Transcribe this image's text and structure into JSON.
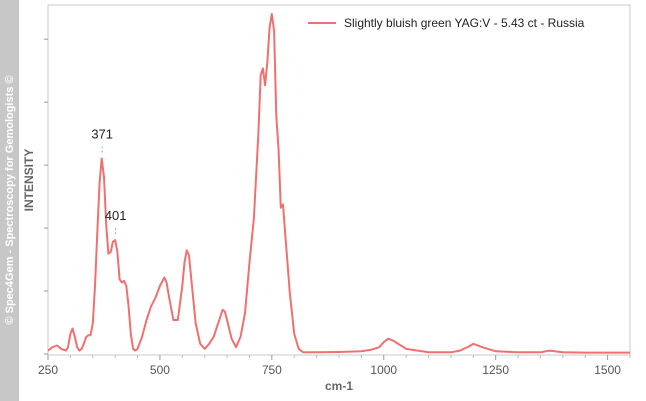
{
  "watermark": "© Spec4Gem - Spectroscopy for Gemologists ©",
  "chart_data": {
    "type": "line",
    "xlabel": "cm-1",
    "ylabel": "INTENSITY",
    "xlim": [
      250,
      1550
    ],
    "ylim": [
      0,
      1
    ],
    "x_ticks": [
      "250",
      "500",
      "750",
      "1000",
      "1250",
      "1500"
    ],
    "y_ticks_labeled": false,
    "grid": false,
    "legend_position": "top-right",
    "series": [
      {
        "name": "Slightly bluish green YAG:V - 5.43 ct - Russia",
        "color": "#f07070",
        "x": [
          250,
          260,
          270,
          280,
          290,
          295,
          300,
          305,
          310,
          315,
          320,
          325,
          330,
          335,
          340,
          345,
          350,
          355,
          360,
          365,
          370,
          375,
          380,
          385,
          390,
          395,
          400,
          405,
          410,
          415,
          420,
          425,
          430,
          435,
          440,
          445,
          450,
          460,
          470,
          480,
          490,
          500,
          510,
          515,
          520,
          530,
          540,
          550,
          555,
          560,
          565,
          570,
          580,
          590,
          600,
          610,
          620,
          630,
          640,
          645,
          650,
          660,
          670,
          680,
          690,
          700,
          710,
          720,
          725,
          730,
          735,
          740,
          745,
          750,
          755,
          760,
          765,
          770,
          775,
          780,
          790,
          800,
          810,
          820,
          850,
          900,
          950,
          970,
          990,
          1000,
          1010,
          1020,
          1050,
          1100,
          1150,
          1170,
          1190,
          1200,
          1220,
          1250,
          1300,
          1350,
          1370,
          1400,
          1450,
          1500,
          1550
        ],
        "y": [
          0.01,
          0.02,
          0.025,
          0.015,
          0.01,
          0.02,
          0.06,
          0.075,
          0.05,
          0.02,
          0.01,
          0.015,
          0.03,
          0.05,
          0.055,
          0.055,
          0.09,
          0.2,
          0.35,
          0.5,
          0.575,
          0.52,
          0.38,
          0.295,
          0.3,
          0.33,
          0.335,
          0.3,
          0.22,
          0.21,
          0.215,
          0.2,
          0.14,
          0.06,
          0.015,
          0.01,
          0.015,
          0.05,
          0.1,
          0.14,
          0.165,
          0.2,
          0.225,
          0.21,
          0.17,
          0.1,
          0.1,
          0.2,
          0.27,
          0.305,
          0.29,
          0.22,
          0.09,
          0.03,
          0.015,
          0.03,
          0.05,
          0.09,
          0.13,
          0.125,
          0.1,
          0.045,
          0.02,
          0.05,
          0.12,
          0.27,
          0.4,
          0.65,
          0.82,
          0.84,
          0.79,
          0.86,
          0.96,
          1.0,
          0.95,
          0.7,
          0.6,
          0.43,
          0.44,
          0.35,
          0.18,
          0.06,
          0.015,
          0.005,
          0.005,
          0.006,
          0.008,
          0.012,
          0.02,
          0.035,
          0.045,
          0.04,
          0.015,
          0.005,
          0.005,
          0.01,
          0.022,
          0.03,
          0.02,
          0.008,
          0.005,
          0.005,
          0.01,
          0.005,
          0.004,
          0.004,
          0.004
        ]
      }
    ],
    "annotations": [
      {
        "x": 371,
        "y": 0.575,
        "text": "371"
      },
      {
        "x": 401,
        "y": 0.335,
        "text": "401"
      }
    ]
  }
}
